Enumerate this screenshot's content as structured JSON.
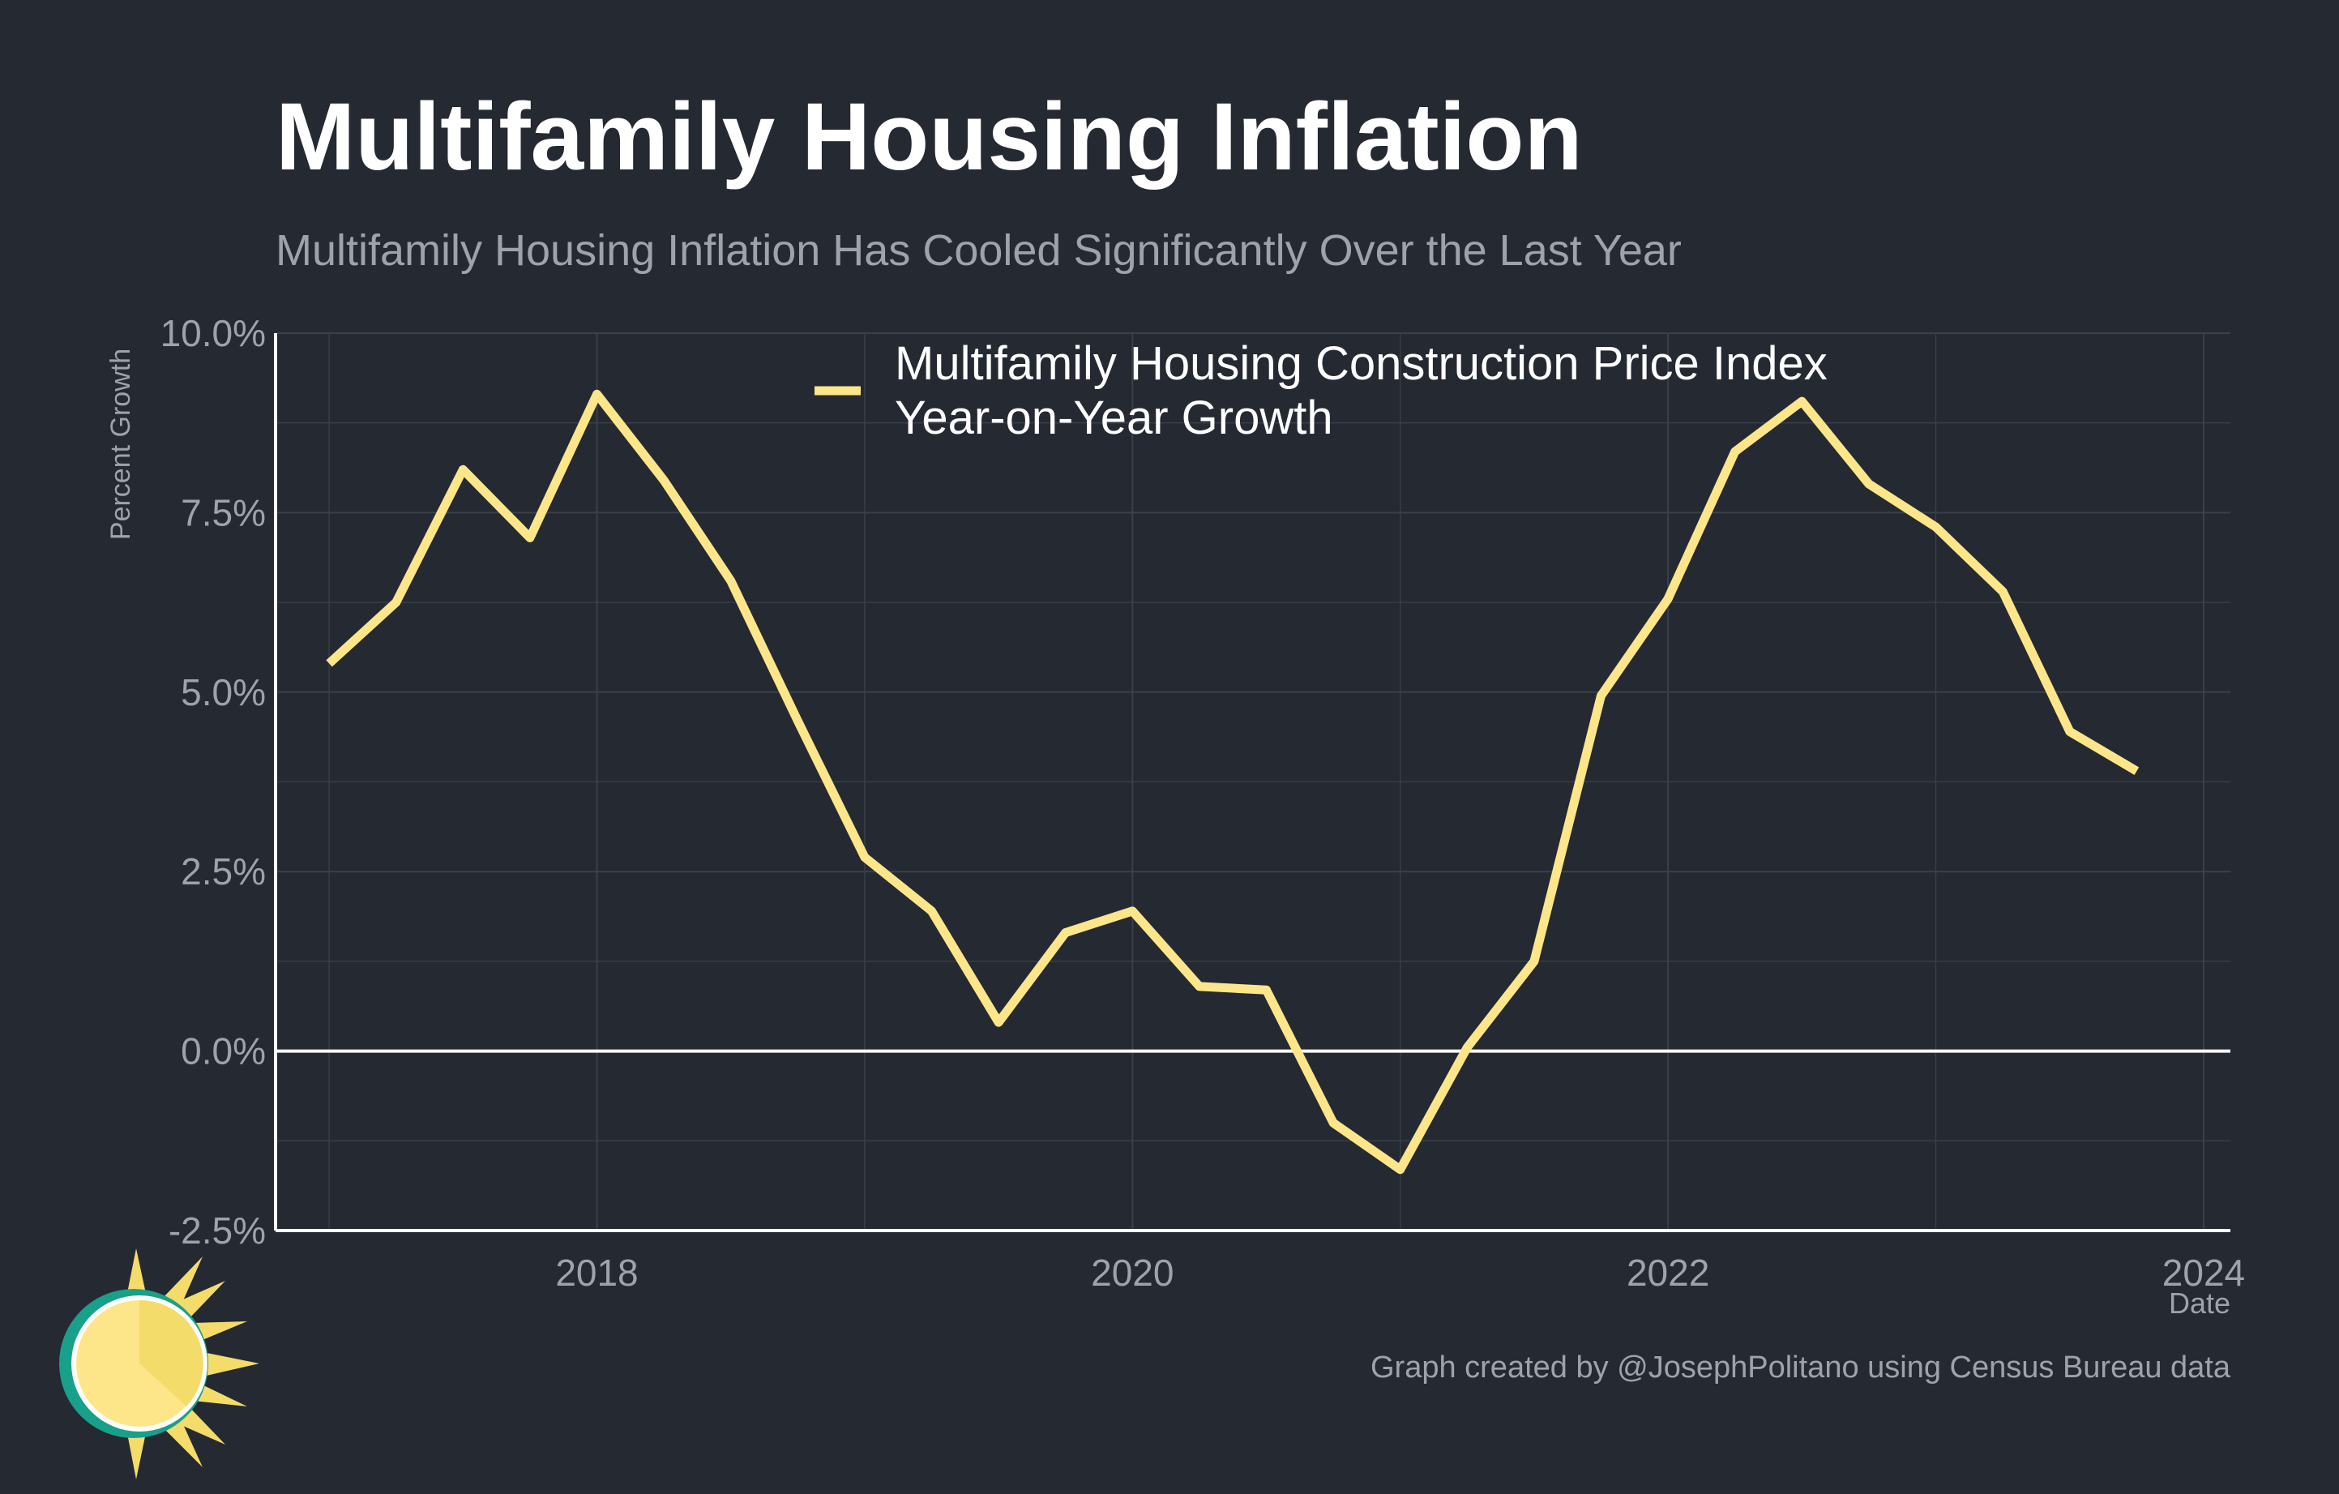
{
  "header": {
    "title": "Multifamily Housing Inflation",
    "subtitle": "Multifamily Housing Inflation Has Cooled Significantly Over the Last Year"
  },
  "footer": {
    "credit": "Graph created by @JosephPolitano using Census Bureau data"
  },
  "colors": {
    "background": "#252932",
    "line": "#FDE68A",
    "grid": "#3b404a",
    "axis_text": "#9ea3ab",
    "zero_line": "#ffffff"
  },
  "logo": {
    "icon": "sun-logo-icon"
  },
  "chart_data": {
    "type": "line",
    "xlabel": "Date",
    "ylabel": "Percent Growth",
    "xlim": [
      2016.8,
      2024.1
    ],
    "ylim": [
      -2.5,
      10.0
    ],
    "x_ticks": [
      2018,
      2020,
      2022,
      2024
    ],
    "x_tick_labels": [
      "2018",
      "2020",
      "2022",
      "2024"
    ],
    "y_ticks": [
      -2.5,
      0.0,
      2.5,
      5.0,
      7.5,
      10.0
    ],
    "y_tick_labels": [
      "-2.5%",
      "0.0%",
      "2.5%",
      "5.0%",
      "7.5%",
      "10.0%"
    ],
    "grid": true,
    "legend_position": "top-center",
    "series": [
      {
        "name": "Multifamily Housing Construction Price Index Year-on-Year Growth",
        "legend_lines": [
          "Multifamily Housing Construction Price Index",
          "Year-on-Year Growth"
        ],
        "color": "#FDE68A",
        "x": [
          "2017-01",
          "2017-04",
          "2017-07",
          "2017-10",
          "2018-01",
          "2018-04",
          "2018-07",
          "2018-10",
          "2019-01",
          "2019-04",
          "2019-07",
          "2019-10",
          "2020-01",
          "2020-04",
          "2020-07",
          "2020-10",
          "2021-01",
          "2021-04",
          "2021-07",
          "2021-10",
          "2022-01",
          "2022-04",
          "2022-07",
          "2022-10",
          "2023-01",
          "2023-04",
          "2023-07",
          "2023-10"
        ],
        "values": [
          5.4,
          6.25,
          8.1,
          7.15,
          9.15,
          7.95,
          6.55,
          4.6,
          2.7,
          1.95,
          0.4,
          1.65,
          1.95,
          0.9,
          0.85,
          -1.0,
          -1.65,
          0.05,
          1.25,
          4.95,
          6.3,
          8.35,
          9.05,
          7.9,
          7.3,
          6.4,
          4.45,
          3.9
        ]
      }
    ]
  }
}
